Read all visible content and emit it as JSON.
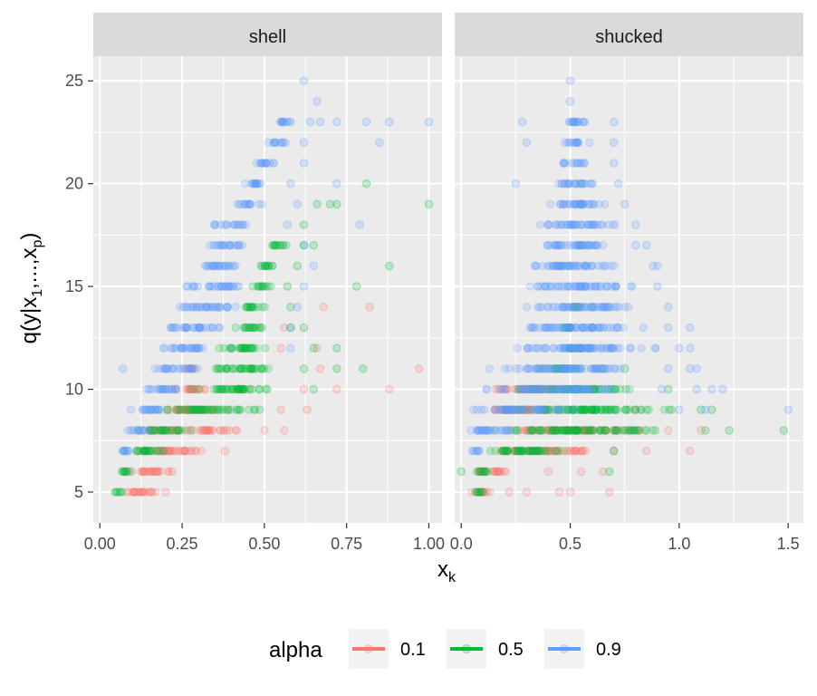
{
  "chart_data": {
    "type": "scatter",
    "y_label_main": "q(y|x",
    "y_label_sub1": "1",
    "y_label_mid": ",...,x",
    "y_label_sub2": "p",
    "y_label_end": ")",
    "x_label_main": "x",
    "x_label_sub": "k",
    "ylim": [
      3.5,
      26.2
    ],
    "y_ticks": [
      5,
      10,
      15,
      20,
      25
    ],
    "legend": {
      "title": "alpha",
      "position": "bottom",
      "entries": [
        {
          "label": "0.1",
          "color": "#F8766D"
        },
        {
          "label": "0.5",
          "color": "#00BA38"
        },
        {
          "label": "0.9",
          "color": "#619CFF"
        }
      ]
    },
    "panels": [
      {
        "strip": "shell",
        "xlim": [
          -0.02,
          1.04
        ],
        "x_ticks": [
          0.0,
          0.25,
          0.5,
          0.75,
          1.0
        ],
        "x_tick_labels": [
          "0.00",
          "0.25",
          "0.50",
          "0.75",
          "1.00"
        ],
        "series": [
          {
            "alpha": "0.1",
            "bands": [
              [
                5,
                0.04,
                0.2
              ],
              [
                6,
                0.05,
                0.24
              ],
              [
                7,
                0.07,
                0.36
              ],
              [
                8,
                0.1,
                0.46
              ],
              [
                9,
                0.15,
                0.4
              ],
              [
                10,
                0.2,
                0.35
              ],
              [
                11,
                0.25,
                0.3
              ]
            ],
            "outliers": [
              [
                5,
                0.2
              ],
              [
                6,
                0.22
              ],
              [
                7,
                0.38
              ],
              [
                8,
                0.5
              ],
              [
                8,
                0.56
              ],
              [
                9,
                0.55
              ],
              [
                9,
                0.63
              ],
              [
                10,
                0.62
              ],
              [
                10,
                0.72
              ],
              [
                10,
                0.88
              ],
              [
                11,
                0.67
              ],
              [
                11,
                0.97
              ],
              [
                12,
                0.55
              ],
              [
                12,
                0.66
              ],
              [
                13,
                0.56
              ],
              [
                14,
                0.68
              ],
              [
                14,
                0.82
              ]
            ]
          },
          {
            "alpha": "0.5",
            "bands": [
              [
                5,
                0.04,
                0.07
              ],
              [
                6,
                0.04,
                0.1
              ],
              [
                7,
                0.06,
                0.22
              ],
              [
                8,
                0.1,
                0.3
              ],
              [
                9,
                0.15,
                0.52
              ],
              [
                10,
                0.25,
                0.56
              ],
              [
                11,
                0.3,
                0.55
              ],
              [
                12,
                0.35,
                0.54
              ],
              [
                13,
                0.4,
                0.52
              ],
              [
                14,
                0.42,
                0.52
              ],
              [
                15,
                0.45,
                0.53
              ],
              [
                16,
                0.47,
                0.55
              ],
              [
                17,
                0.5,
                0.58
              ]
            ],
            "outliers": [
              [
                10,
                0.65
              ],
              [
                11,
                0.62
              ],
              [
                11,
                0.72
              ],
              [
                11,
                0.8
              ],
              [
                12,
                0.65
              ],
              [
                12,
                0.72
              ],
              [
                13,
                0.58
              ],
              [
                13,
                0.62
              ],
              [
                14,
                0.58
              ],
              [
                15,
                0.57
              ],
              [
                15,
                0.78
              ],
              [
                16,
                0.6
              ],
              [
                16,
                0.88
              ],
              [
                17,
                0.62
              ],
              [
                17,
                0.65
              ],
              [
                18,
                0.62
              ],
              [
                19,
                0.66
              ],
              [
                19,
                0.7
              ],
              [
                19,
                0.72
              ],
              [
                20,
                0.81
              ],
              [
                19,
                1.0
              ]
            ]
          },
          {
            "alpha": "0.9",
            "bands": [
              [
                7,
                0.04,
                0.1
              ],
              [
                8,
                0.07,
                0.16
              ],
              [
                9,
                0.09,
                0.22
              ],
              [
                10,
                0.12,
                0.28
              ],
              [
                11,
                0.14,
                0.32
              ],
              [
                12,
                0.16,
                0.36
              ],
              [
                13,
                0.18,
                0.4
              ],
              [
                14,
                0.2,
                0.44
              ],
              [
                15,
                0.24,
                0.46
              ],
              [
                16,
                0.28,
                0.46
              ],
              [
                17,
                0.31,
                0.46
              ],
              [
                18,
                0.34,
                0.46
              ],
              [
                19,
                0.4,
                0.5
              ],
              [
                20,
                0.42,
                0.52
              ],
              [
                21,
                0.45,
                0.55
              ],
              [
                22,
                0.5,
                0.58
              ],
              [
                23,
                0.52,
                0.6
              ]
            ],
            "outliers": [
              [
                11,
                0.07
              ],
              [
                12,
                0.58
              ],
              [
                13,
                0.58
              ],
              [
                14,
                0.6
              ],
              [
                15,
                0.62
              ],
              [
                16,
                0.65
              ],
              [
                17,
                0.62
              ],
              [
                18,
                0.57
              ],
              [
                18,
                0.79
              ],
              [
                19,
                0.6
              ],
              [
                20,
                0.58
              ],
              [
                20,
                0.72
              ],
              [
                21,
                0.62
              ],
              [
                22,
                0.62
              ],
              [
                22,
                0.85
              ],
              [
                23,
                0.64
              ],
              [
                23,
                0.67
              ],
              [
                23,
                0.72
              ],
              [
                23,
                0.81
              ],
              [
                23,
                0.88
              ],
              [
                23,
                1.0
              ],
              [
                24,
                0.66
              ],
              [
                25,
                0.62
              ]
            ]
          }
        ]
      },
      {
        "strip": "shucked",
        "xlim": [
          -0.03,
          1.57
        ],
        "x_ticks": [
          0.0,
          0.5,
          1.0,
          1.5
        ],
        "x_tick_labels": [
          "0.0",
          "0.5",
          "1.0",
          "1.5"
        ],
        "series": [
          {
            "alpha": "0.1",
            "bands": [
              [
                5,
                0.02,
                0.15
              ],
              [
                6,
                0.02,
                0.25
              ],
              [
                7,
                0.02,
                0.65
              ],
              [
                8,
                0.05,
                0.9
              ],
              [
                9,
                0.05,
                0.5
              ],
              [
                10,
                0.08,
                0.55
              ]
            ],
            "outliers": [
              [
                5,
                0.22
              ],
              [
                5,
                0.3
              ],
              [
                5,
                0.45
              ],
              [
                5,
                0.5
              ],
              [
                5,
                0.68
              ],
              [
                6,
                0.4
              ],
              [
                6,
                0.55
              ],
              [
                6,
                0.65
              ],
              [
                7,
                0.7
              ],
              [
                7,
                0.85
              ],
              [
                7,
                1.05
              ],
              [
                8,
                1.1
              ],
              [
                8,
                0.95
              ],
              [
                9,
                0.6
              ],
              [
                9,
                0.8
              ]
            ]
          },
          {
            "alpha": "0.5",
            "bands": [
              [
                5,
                0.05,
                0.12
              ],
              [
                6,
                0.05,
                0.15
              ],
              [
                7,
                0.05,
                0.55
              ],
              [
                8,
                0.08,
                1.0
              ],
              [
                9,
                0.1,
                1.05
              ],
              [
                10,
                0.2,
                0.9
              ],
              [
                11,
                0.35,
                0.55
              ],
              [
                12,
                0.45,
                0.58
              ],
              [
                13,
                0.45,
                0.55
              ],
              [
                14,
                0.5,
                0.55
              ]
            ],
            "outliers": [
              [
                5,
                0.1
              ],
              [
                6,
                0.0
              ],
              [
                6,
                0.68
              ],
              [
                7,
                0.7
              ],
              [
                8,
                1.12
              ],
              [
                8,
                1.23
              ],
              [
                8,
                1.48
              ],
              [
                9,
                1.1
              ],
              [
                9,
                1.15
              ],
              [
                10,
                0.95
              ],
              [
                11,
                0.65
              ],
              [
                11,
                0.75
              ],
              [
                13,
                0.6
              ],
              [
                14,
                0.6
              ],
              [
                16,
                0.5
              ],
              [
                17,
                0.55
              ],
              [
                19,
                0.55
              ],
              [
                20,
                0.55
              ]
            ]
          },
          {
            "alpha": "0.9",
            "bands": [
              [
                7,
                0.02,
                0.1
              ],
              [
                8,
                0.0,
                0.3
              ],
              [
                9,
                0.0,
                0.55
              ],
              [
                10,
                0.05,
                0.85
              ],
              [
                11,
                0.08,
                0.88
              ],
              [
                12,
                0.15,
                0.95
              ],
              [
                13,
                0.2,
                0.9
              ],
              [
                14,
                0.25,
                0.85
              ],
              [
                15,
                0.25,
                0.85
              ],
              [
                16,
                0.25,
                0.8
              ],
              [
                17,
                0.3,
                0.75
              ],
              [
                18,
                0.3,
                0.75
              ],
              [
                19,
                0.35,
                0.7
              ],
              [
                20,
                0.4,
                0.65
              ],
              [
                21,
                0.45,
                0.6
              ],
              [
                22,
                0.45,
                0.6
              ],
              [
                23,
                0.45,
                0.62
              ]
            ],
            "outliers": [
              [
                9,
                1.0
              ],
              [
                9,
                1.12
              ],
              [
                9,
                1.5
              ],
              [
                10,
                0.92
              ],
              [
                10,
                1.08
              ],
              [
                10,
                1.15
              ],
              [
                10,
                1.2
              ],
              [
                11,
                0.95
              ],
              [
                11,
                1.05
              ],
              [
                11,
                1.08
              ],
              [
                12,
                1.0
              ],
              [
                12,
                1.05
              ],
              [
                13,
                0.95
              ],
              [
                13,
                1.05
              ],
              [
                14,
                0.95
              ],
              [
                15,
                0.9
              ],
              [
                16,
                0.88
              ],
              [
                16,
                0.9
              ],
              [
                17,
                0.8
              ],
              [
                17,
                0.85
              ],
              [
                18,
                0.8
              ],
              [
                19,
                0.75
              ],
              [
                20,
                0.25
              ],
              [
                20,
                0.72
              ],
              [
                21,
                0.7
              ],
              [
                22,
                0.3
              ],
              [
                22,
                0.7
              ],
              [
                23,
                0.28
              ],
              [
                23,
                0.7
              ],
              [
                24,
                0.5
              ],
              [
                25,
                0.5
              ]
            ]
          }
        ]
      }
    ]
  }
}
